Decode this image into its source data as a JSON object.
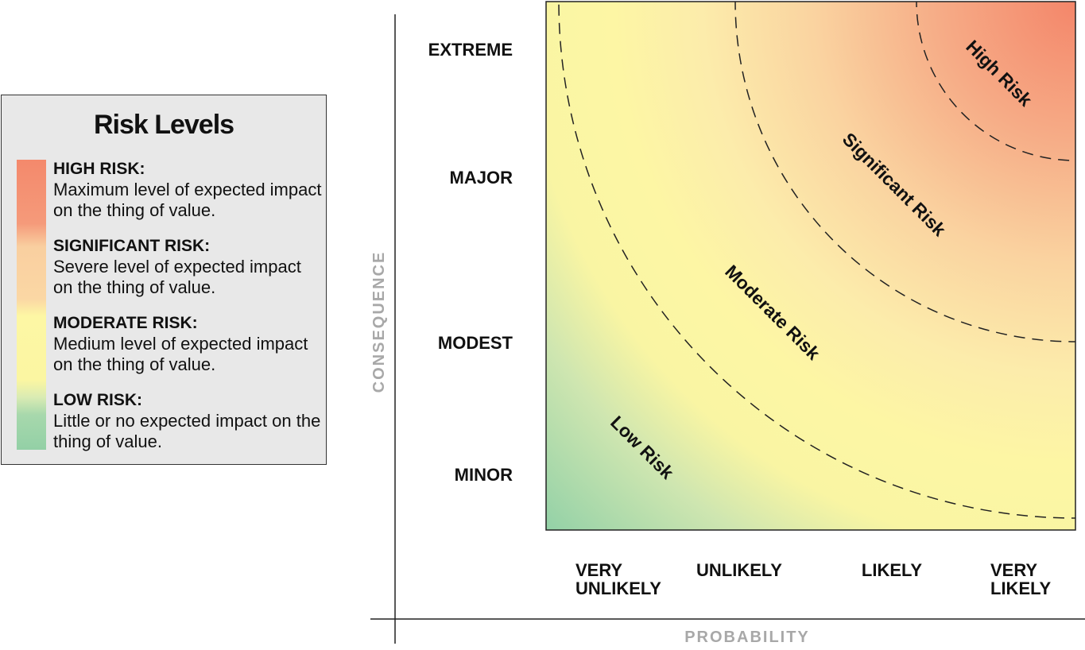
{
  "legend": {
    "title": "Risk Levels",
    "items": [
      {
        "heading": "HIGH RISK:",
        "description": "Maximum level of expected impact on the thing of value."
      },
      {
        "heading": "SIGNIFICANT RISK:",
        "description": "Severe level of expected impact on the thing of value."
      },
      {
        "heading": "MODERATE RISK:",
        "description": "Medium level of expected impact on the thing of value."
      },
      {
        "heading": "LOW RISK:",
        "description": "Little or no expected impact on the thing of value."
      }
    ]
  },
  "y_axis": {
    "title": "CONSEQUENCE",
    "labels": [
      "EXTREME",
      "MAJOR",
      "MODEST",
      "MINOR"
    ]
  },
  "x_axis": {
    "title": "PROBABILITY",
    "labels": [
      [
        "VERY",
        "UNLIKELY"
      ],
      [
        "UNLIKELY"
      ],
      [
        "LIKELY"
      ],
      [
        "VERY",
        "LIKELY"
      ]
    ]
  },
  "zones": [
    "High Risk",
    "Significant Risk",
    "Moderate Risk",
    "Low Risk"
  ]
}
